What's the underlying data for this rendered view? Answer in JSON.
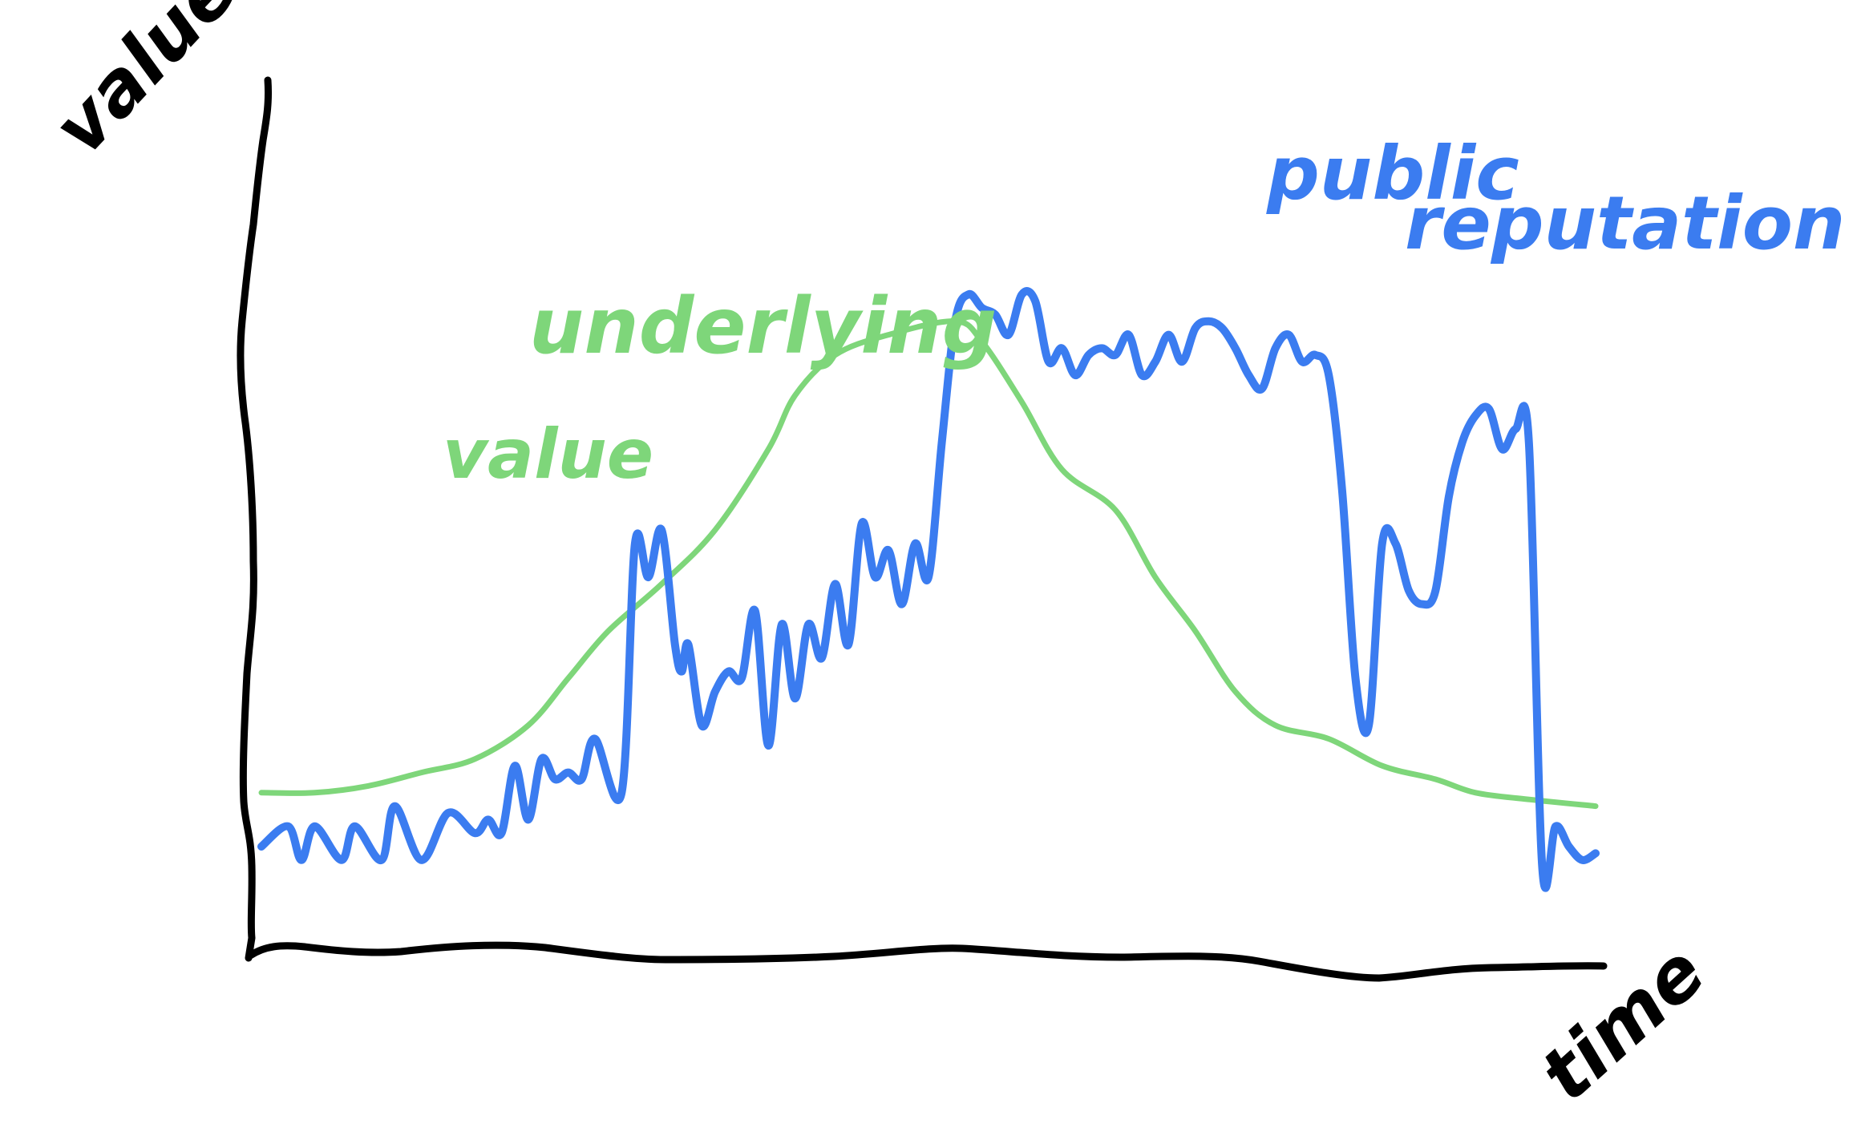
{
  "chart_data": {
    "type": "line",
    "xlabel": "time",
    "ylabel": "value",
    "x_range": [
      0,
      100
    ],
    "y_range": [
      0,
      100
    ],
    "grid": false,
    "series": [
      {
        "name": "underlying value",
        "color": "#7ed67a",
        "x": [
          0,
          4,
          8,
          12,
          16,
          20,
          23,
          26,
          30,
          34,
          38,
          40,
          43,
          47,
          52,
          54,
          57,
          60,
          64,
          67,
          70,
          73,
          76,
          80,
          84,
          88,
          91,
          95,
          100
        ],
        "y": [
          18,
          18,
          19,
          21,
          23,
          28,
          35,
          42,
          49,
          57,
          69,
          77,
          83,
          86,
          88,
          85,
          76,
          66,
          60,
          50,
          42,
          33,
          28,
          26,
          22,
          20,
          18,
          17,
          16
        ]
      },
      {
        "name": "public reputation",
        "color": "#3b7cf0",
        "x": [
          0,
          2,
          3,
          4,
          6,
          7,
          9,
          10,
          12,
          14,
          16,
          17,
          18,
          19,
          20,
          21,
          22,
          23,
          24,
          25,
          27,
          28,
          29,
          30,
          31,
          31.5,
          32,
          33,
          34,
          35,
          36,
          37,
          38,
          39,
          40,
          41,
          42,
          43,
          44,
          45,
          46,
          47,
          48,
          49,
          50,
          51,
          52,
          53,
          54,
          55,
          56,
          57,
          58,
          59,
          60,
          61,
          62,
          63,
          64,
          65,
          66,
          67,
          68,
          69,
          70,
          71,
          72,
          73,
          74,
          75,
          76,
          77,
          78,
          79,
          80,
          81,
          82,
          83,
          84,
          85,
          86,
          87,
          88,
          89,
          90,
          91,
          92,
          93,
          94,
          95,
          96,
          97,
          98,
          99,
          100
        ],
        "y": [
          10,
          13,
          8,
          13,
          8,
          13,
          8,
          16,
          8,
          15,
          12,
          14,
          12,
          22,
          14,
          23,
          20,
          21,
          20,
          26,
          18,
          55,
          50,
          57,
          40,
          36,
          40,
          28,
          33,
          36,
          35,
          45,
          25,
          43,
          32,
          43,
          38,
          49,
          40,
          58,
          50,
          54,
          46,
          55,
          50,
          70,
          88,
          92,
          90,
          89,
          86,
          92,
          91,
          82,
          84,
          80,
          83,
          84,
          83,
          86,
          80,
          82,
          86,
          82,
          87,
          88,
          87,
          84,
          80,
          78,
          84,
          86,
          82,
          83,
          80,
          63,
          35,
          28,
          55,
          55,
          48,
          46,
          48,
          62,
          70,
          74,
          75,
          69,
          72,
          70,
          7,
          13,
          10,
          8,
          9
        ]
      }
    ],
    "annotations": [
      {
        "text": "underlying",
        "series": 0
      },
      {
        "text": "value",
        "series": 0
      },
      {
        "text": "public",
        "series": 1
      },
      {
        "text": "reputation",
        "series": 1
      }
    ]
  }
}
